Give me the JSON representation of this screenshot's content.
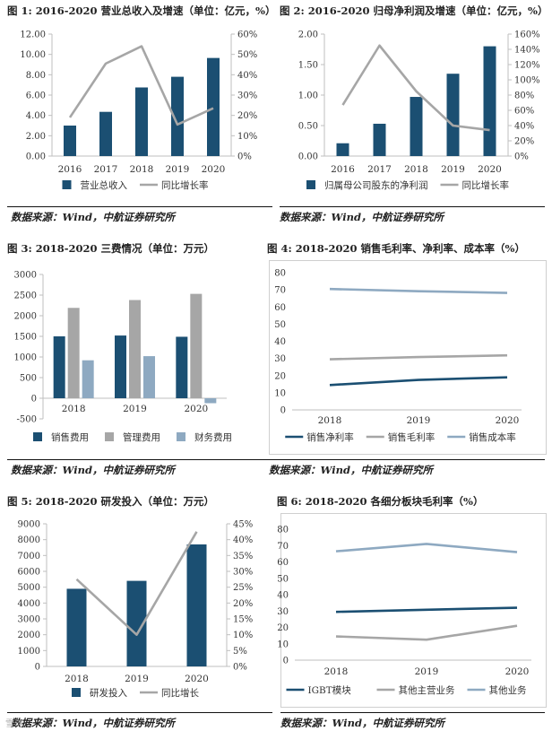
{
  "figures": [
    {
      "title": "图 1: 2016-2020 营业总收入及增速（单位：亿元，%）",
      "source": "数据来源：Wind，中航证券研究所"
    },
    {
      "title": "图 2: 2016-2020 归母净利润及增速（单位：亿元，%）",
      "source": "数据来源：Wind，中航证券研究所"
    },
    {
      "title": "图 3: 2018-2020 三费情况（单位：万元）",
      "source": "数据来源：Wind，中航证券研究所"
    },
    {
      "title": "图 4: 2018-2020 销售毛利率、净利率、成本率（%）",
      "source": "数据来源：Wind，中航证券研究所"
    },
    {
      "title": "图 5: 2018-2020 研发投入（单位：万元）",
      "source": "数据来源：Wind，中航证券研究所"
    },
    {
      "title": "图 6: 2018-2020 各细分板块毛利率（%）",
      "source": "数据来源：Wind，中航证券研究所"
    }
  ],
  "watermark": "雪球",
  "colors": {
    "navy": "#1b4f72",
    "gray": "#a6a6a6",
    "lightblue": "#8ea9c1",
    "axis": "#bfbfbf"
  },
  "chart_data": [
    {
      "id": "c1",
      "type": "bar+line",
      "categories": [
        "2016",
        "2017",
        "2018",
        "2019",
        "2020"
      ],
      "series": [
        {
          "name": "营业总收入",
          "type": "bar",
          "axis": "left",
          "color": "#1b4f72",
          "values": [
            3.0,
            4.35,
            6.75,
            7.8,
            9.65
          ]
        },
        {
          "name": "同比增长率",
          "type": "line",
          "axis": "right",
          "color": "#a6a6a6",
          "values": [
            0.19,
            0.455,
            0.54,
            0.155,
            0.235
          ]
        }
      ],
      "yleft": {
        "min": 0,
        "max": 12,
        "step": 2,
        "labels": [
          "0.00",
          "2.00",
          "4.00",
          "6.00",
          "8.00",
          "10.00",
          "12.00"
        ]
      },
      "yright": {
        "min": 0,
        "max": 0.6,
        "step": 0.1,
        "labels": [
          "0%",
          "10%",
          "20%",
          "30%",
          "40%",
          "50%",
          "60%"
        ]
      },
      "legend": "bottom"
    },
    {
      "id": "c2",
      "type": "bar+line",
      "categories": [
        "2016",
        "2017",
        "2018",
        "2019",
        "2020"
      ],
      "series": [
        {
          "name": "归属母公司股东的净利润",
          "type": "bar",
          "axis": "left",
          "color": "#1b4f72",
          "values": [
            0.21,
            0.53,
            0.97,
            1.35,
            1.8
          ]
        },
        {
          "name": "同比增长率",
          "type": "line",
          "axis": "right",
          "color": "#a6a6a6",
          "values": [
            0.67,
            1.45,
            0.85,
            0.4,
            0.34
          ]
        }
      ],
      "yleft": {
        "min": 0,
        "max": 2,
        "step": 0.5,
        "labels": [
          "0.00",
          "0.50",
          "1.00",
          "1.50",
          "2.00"
        ]
      },
      "yright": {
        "min": 0,
        "max": 1.6,
        "step": 0.2,
        "labels": [
          "0%",
          "20%",
          "40%",
          "60%",
          "80%",
          "100%",
          "120%",
          "140%",
          "160%"
        ]
      },
      "legend": "bottom"
    },
    {
      "id": "c3",
      "type": "bar",
      "categories": [
        "2018",
        "2019",
        "2020"
      ],
      "series": [
        {
          "name": "销售费用",
          "color": "#1b4f72",
          "values": [
            1500,
            1520,
            1490
          ]
        },
        {
          "name": "管理费用",
          "color": "#a6a6a6",
          "values": [
            2190,
            2380,
            2530
          ]
        },
        {
          "name": "财务费用",
          "color": "#8ea9c1",
          "values": [
            920,
            1020,
            -120
          ]
        }
      ],
      "yleft": {
        "min": -500,
        "max": 3000,
        "step": 500,
        "labels": [
          "-500",
          "0",
          "500",
          "1000",
          "1500",
          "2000",
          "2500",
          "3000"
        ]
      },
      "legend": "bottom"
    },
    {
      "id": "c4",
      "type": "line",
      "categories": [
        "2018",
        "2019",
        "2020"
      ],
      "series": [
        {
          "name": "销售净利率",
          "color": "#1b4f72",
          "values": [
            14.5,
            17.5,
            19.0
          ]
        },
        {
          "name": "销售毛利率",
          "color": "#a6a6a6",
          "values": [
            29.5,
            30.8,
            31.8
          ]
        },
        {
          "name": "销售成本率",
          "color": "#8ea9c1",
          "values": [
            70.5,
            69.2,
            68.2
          ]
        }
      ],
      "yleft": {
        "min": 0,
        "max": 80,
        "step": 10,
        "labels": [
          "0",
          "10",
          "20",
          "30",
          "40",
          "50",
          "60",
          "70",
          "80"
        ]
      },
      "legend": "bottom"
    },
    {
      "id": "c5",
      "type": "bar+line",
      "categories": [
        "2018",
        "2019",
        "2020"
      ],
      "series": [
        {
          "name": "研发投入",
          "type": "bar",
          "axis": "left",
          "color": "#1b4f72",
          "values": [
            4900,
            5400,
            7700
          ]
        },
        {
          "name": "同比增长",
          "type": "line",
          "axis": "right",
          "color": "#a6a6a6",
          "values": [
            0.275,
            0.1,
            0.425
          ]
        }
      ],
      "yleft": {
        "min": 0,
        "max": 9000,
        "step": 1000,
        "labels": [
          "0",
          "1000",
          "2000",
          "3000",
          "4000",
          "5000",
          "6000",
          "7000",
          "8000",
          "9000"
        ]
      },
      "yright": {
        "min": 0,
        "max": 0.45,
        "step": 0.05,
        "labels": [
          "0%",
          "5%",
          "10%",
          "15%",
          "20%",
          "25%",
          "30%",
          "35%",
          "40%",
          "45%"
        ]
      },
      "legend": "bottom"
    },
    {
      "id": "c6",
      "type": "line",
      "categories": [
        "2018",
        "2019",
        "2020"
      ],
      "series": [
        {
          "name": "IGBT模块",
          "color": "#1b4f72",
          "values": [
            29.5,
            30.8,
            32.0
          ]
        },
        {
          "name": "其他主营业务",
          "color": "#a6a6a6",
          "values": [
            14.5,
            12.5,
            21.0
          ]
        },
        {
          "name": "其他业务",
          "color": "#8ea9c1",
          "values": [
            66.5,
            71.0,
            66.0
          ]
        }
      ],
      "yleft": {
        "min": 0,
        "max": 80,
        "step": 10,
        "labels": [
          "0",
          "10",
          "20",
          "30",
          "40",
          "50",
          "60",
          "70",
          "80"
        ]
      },
      "legend": "bottom"
    }
  ]
}
